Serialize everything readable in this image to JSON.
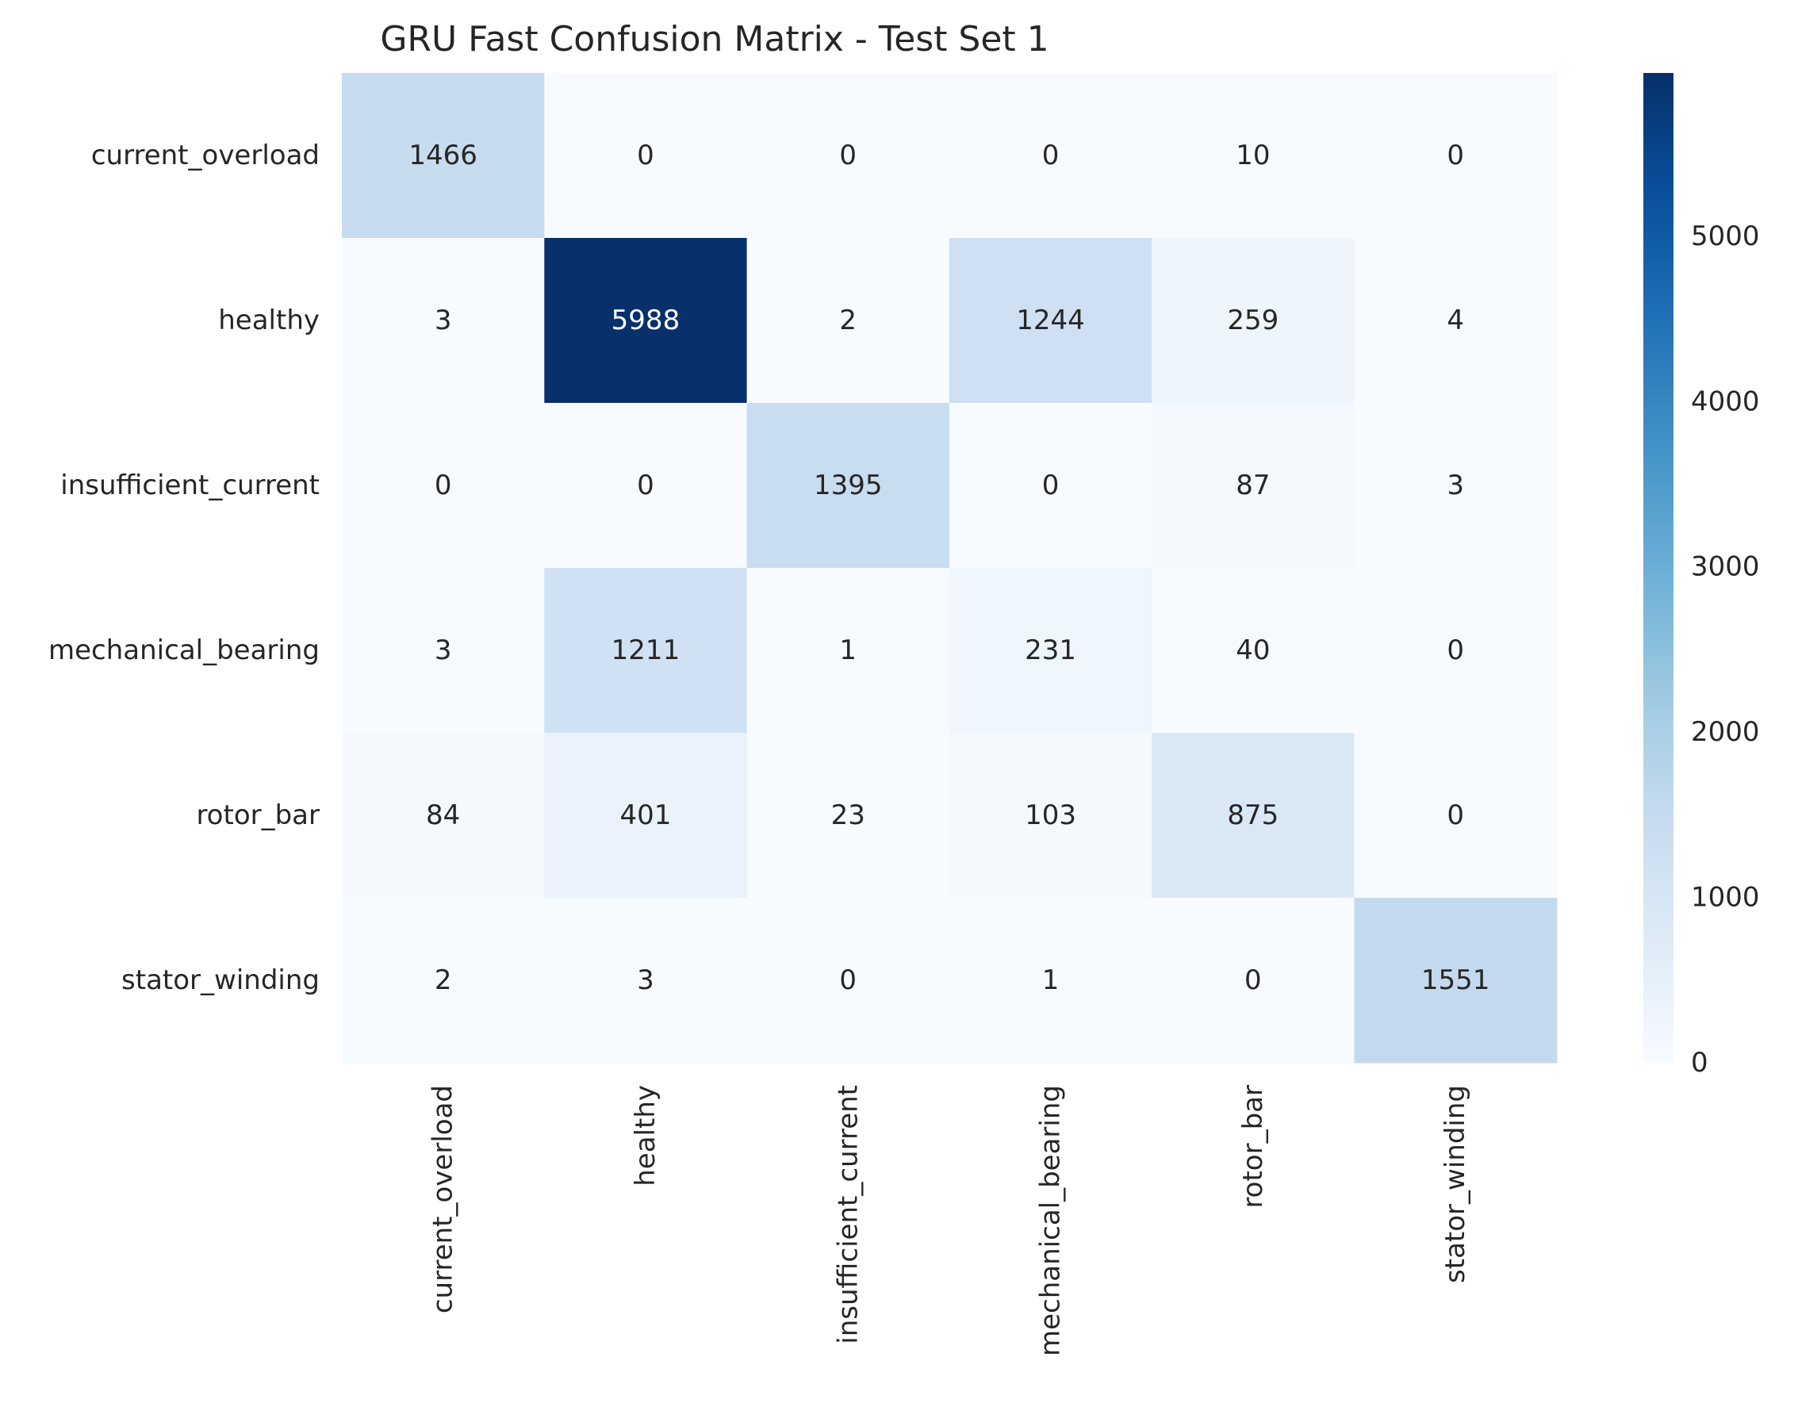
{
  "chart_data": {
    "type": "heatmap",
    "title": "GRU Fast Confusion Matrix - Test Set 1",
    "xlabel": "",
    "ylabel": "",
    "row_labels": [
      "current_overload",
      "healthy",
      "insufficient_current",
      "mechanical_bearing",
      "rotor_bar",
      "stator_winding"
    ],
    "col_labels": [
      "current_overload",
      "healthy",
      "insufficient_current",
      "mechanical_bearing",
      "rotor_bar",
      "stator_winding"
    ],
    "values": [
      [
        1466,
        0,
        0,
        0,
        10,
        0
      ],
      [
        3,
        5988,
        2,
        1244,
        259,
        4
      ],
      [
        0,
        0,
        1395,
        0,
        87,
        3
      ],
      [
        3,
        1211,
        1,
        231,
        40,
        0
      ],
      [
        84,
        401,
        23,
        103,
        875,
        0
      ],
      [
        2,
        3,
        0,
        1,
        0,
        1551
      ]
    ],
    "colormap": "Blues",
    "vmin": 0,
    "vmax": 5988,
    "colorbar_ticks": [
      0,
      1000,
      2000,
      3000,
      4000,
      5000
    ],
    "grid": false
  }
}
